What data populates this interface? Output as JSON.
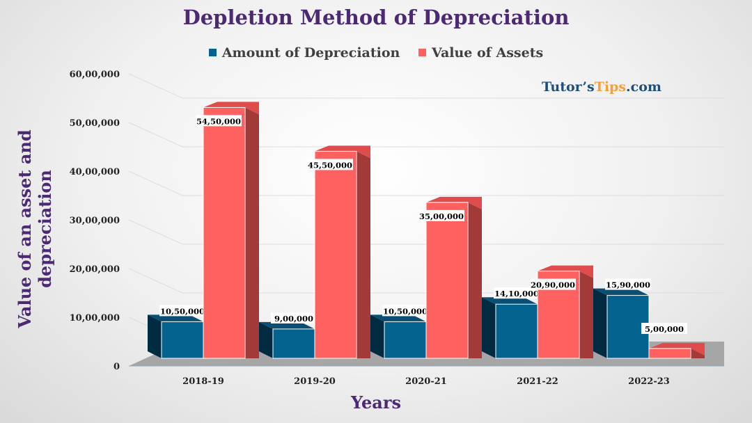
{
  "chart_data": {
    "type": "bar",
    "title": "Depletion Method of Depreciation",
    "xlabel": "Years",
    "ylabel": "Value of an asset and  depreciation",
    "categories": [
      "2018-19",
      "2019-20",
      "2020-21",
      "2021-22",
      "2022-23"
    ],
    "series": [
      {
        "name": "Amount of Depreciation",
        "color": "#04628f",
        "values": [
          1050000,
          900000,
          1050000,
          1410000,
          1590000
        ],
        "labels": [
          "10,50,000",
          "9,00,000",
          "10,50,000",
          "14,10,000",
          "15,90,000"
        ]
      },
      {
        "name": "Value of Assets",
        "color": "#ff6161",
        "values": [
          5450000,
          4550000,
          3500000,
          2090000,
          500000
        ],
        "labels": [
          "54,50,000",
          "45,50,000",
          "35,00,000",
          "20,90,000",
          "5,00,000"
        ]
      }
    ],
    "ylim": [
      0,
      6000000
    ],
    "yticks": [
      0,
      1000000,
      2000000,
      3000000,
      4000000,
      5000000,
      6000000
    ],
    "ytick_labels": [
      "0",
      "10,00,000",
      "20,00,000",
      "30,00,000",
      "40,00,000",
      "50,00,000",
      "60,00,000"
    ],
    "grid": true,
    "legend_position": "top",
    "style": "3d-column"
  },
  "watermark": {
    "part1": "Tutor’s",
    "part2": "Tips",
    "part3": ".com"
  }
}
